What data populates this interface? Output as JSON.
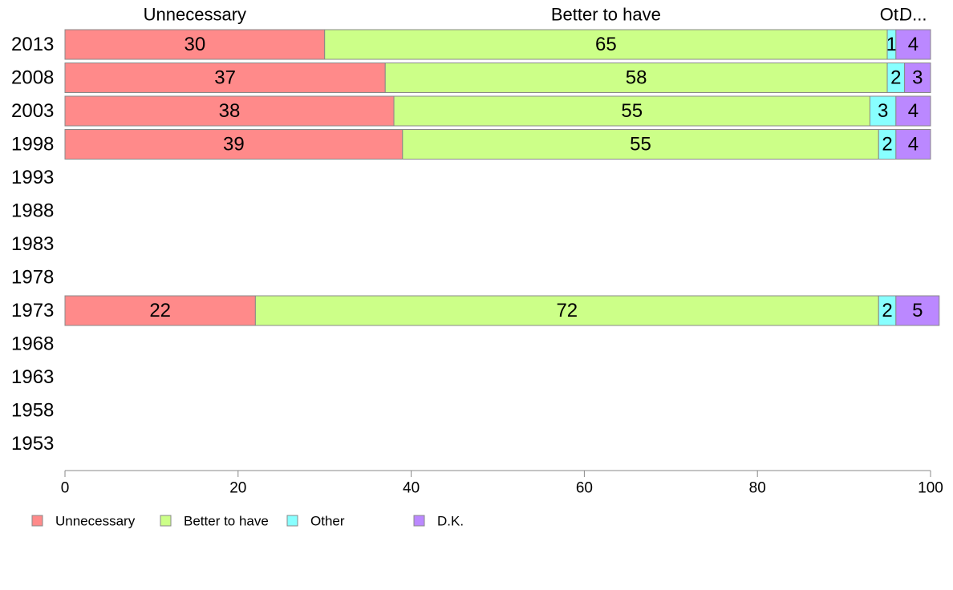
{
  "chart_data": {
    "type": "bar",
    "orientation": "horizontal",
    "stacked": true,
    "categories": [
      "2013",
      "2008",
      "2003",
      "1998",
      "1993",
      "1988",
      "1983",
      "1978",
      "1973",
      "1968",
      "1963",
      "1958",
      "1953"
    ],
    "series": [
      {
        "name": "Unnecessary",
        "color": "#ff8a8a",
        "values": [
          30,
          37,
          38,
          39,
          null,
          null,
          null,
          null,
          22,
          null,
          null,
          null,
          null
        ]
      },
      {
        "name": "Better to have",
        "color": "#ccff88",
        "values": [
          65,
          58,
          55,
          55,
          null,
          null,
          null,
          null,
          72,
          null,
          null,
          null,
          null
        ]
      },
      {
        "name": "Other",
        "color": "#88ffff",
        "values": [
          1,
          2,
          3,
          2,
          null,
          null,
          null,
          null,
          2,
          null,
          null,
          null,
          null
        ]
      },
      {
        "name": "D.K.",
        "color": "#bb88ff",
        "values": [
          4,
          3,
          4,
          4,
          null,
          null,
          null,
          null,
          5,
          null,
          null,
          null,
          null
        ]
      }
    ],
    "top_labels": [
      "Unnecessary",
      "Better to have",
      "Ot.",
      "D..."
    ],
    "xlim": [
      0,
      100
    ],
    "xticks": [
      "0",
      "20",
      "40",
      "60",
      "80",
      "100"
    ],
    "legend": "bottom-left",
    "grid": false
  }
}
